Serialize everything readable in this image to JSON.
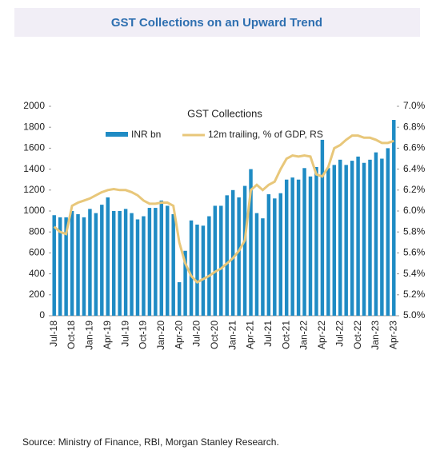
{
  "header": {
    "title": "GST Collections on an Upward Trend"
  },
  "chart_data": {
    "type": "bar-line",
    "title": "GST Collections",
    "categories": [
      "Jul-18",
      null,
      null,
      "Oct-18",
      null,
      null,
      "Jan-19",
      null,
      null,
      "Apr-19",
      null,
      null,
      "Jul-19",
      null,
      null,
      "Oct-19",
      null,
      null,
      "Jan-20",
      null,
      null,
      "Apr-20",
      null,
      null,
      "Jul-20",
      null,
      null,
      "Oct-20",
      null,
      null,
      "Jan-21",
      null,
      null,
      "Apr-21",
      null,
      null,
      "Jul-21",
      null,
      null,
      "Oct-21",
      null,
      null,
      "Jan-22",
      null,
      null,
      "Apr-22",
      null,
      null,
      "Jul-22",
      null,
      null,
      "Oct-22",
      null,
      null,
      "Jan-23",
      null,
      null,
      "Apr-23"
    ],
    "series": [
      {
        "name": "INR bn",
        "color": "#1f8bc4",
        "values": [
          960,
          940,
          940,
          1000,
          970,
          940,
          1020,
          980,
          1060,
          1130,
          1000,
          1000,
          1020,
          980,
          920,
          950,
          1030,
          1030,
          1100,
          1050,
          970,
          320,
          620,
          910,
          870,
          860,
          950,
          1050,
          1050,
          1150,
          1200,
          1130,
          1240,
          1400,
          980,
          930,
          1160,
          1120,
          1170,
          1300,
          1320,
          1300,
          1410,
          1330,
          1420,
          1680,
          1410,
          1440,
          1490,
          1440,
          1480,
          1520,
          1460,
          1490,
          1560,
          1500,
          1600,
          1870
        ]
      },
      {
        "name": "12m trailing, % of GDP, RS",
        "color": "#e8c77a",
        "axis": "y2",
        "values": [
          5.85,
          5.8,
          5.78,
          6.05,
          6.08,
          6.1,
          6.12,
          6.15,
          6.18,
          6.2,
          6.21,
          6.2,
          6.2,
          6.18,
          6.15,
          6.1,
          6.07,
          6.07,
          6.08,
          6.08,
          6.05,
          5.7,
          5.5,
          5.38,
          5.32,
          5.35,
          5.38,
          5.42,
          5.45,
          5.5,
          5.55,
          5.62,
          5.72,
          6.2,
          6.25,
          6.2,
          6.25,
          6.28,
          6.4,
          6.5,
          6.53,
          6.52,
          6.53,
          6.52,
          6.35,
          6.33,
          6.42,
          6.6,
          6.63,
          6.68,
          6.72,
          6.72,
          6.7,
          6.7,
          6.68,
          6.65,
          6.65,
          6.67
        ]
      }
    ],
    "ylim": [
      0,
      2000
    ],
    "yticks": [
      0,
      200,
      400,
      600,
      800,
      1000,
      1200,
      1400,
      1600,
      1800,
      2000
    ],
    "y2lim": [
      5.0,
      7.0
    ],
    "y2ticks": [
      {
        "value": 5.0,
        "label": "5.0%"
      },
      {
        "value": 5.2,
        "label": "5.2%"
      },
      {
        "value": 5.4,
        "label": "5.4%"
      },
      {
        "value": 5.6,
        "label": "5.6%"
      },
      {
        "value": 5.8,
        "label": "5.8%"
      },
      {
        "value": 6.0,
        "label": "6.0%"
      },
      {
        "value": 6.2,
        "label": "6.2%"
      },
      {
        "value": 6.4,
        "label": "6.4%"
      },
      {
        "value": 6.6,
        "label": "6.6%"
      },
      {
        "value": 6.8,
        "label": "6.8%"
      },
      {
        "value": 7.0,
        "label": "7.0%"
      }
    ],
    "source": "Source: Ministry of Finance, RBI, Morgan Stanley Research."
  }
}
